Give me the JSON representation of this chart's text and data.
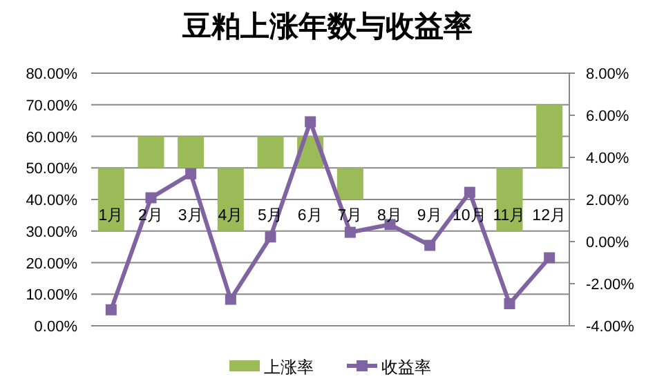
{
  "chart_data": {
    "type": "bar",
    "title": "豆粕上涨年数与收益率",
    "categories": [
      "1月",
      "2月",
      "3月",
      "4月",
      "5月",
      "6月",
      "7月",
      "8月",
      "9月",
      "10月",
      "11月",
      "12月"
    ],
    "series": [
      {
        "name": "上涨率",
        "color": "#9bbb59",
        "base": [
          50,
          50,
          50,
          50,
          50,
          50,
          50,
          null,
          null,
          null,
          50,
          50
        ],
        "values": [
          -20,
          10,
          10,
          -20,
          10,
          10,
          -10,
          null,
          null,
          null,
          -20,
          20
        ]
      },
      {
        "name": "收益率",
        "type": "line",
        "axis": "y2",
        "color": "#8064a2",
        "values": [
          -3.24,
          2.08,
          3.22,
          -2.74,
          0.22,
          5.69,
          0.44,
          0.81,
          -0.18,
          2.34,
          -2.95,
          -0.77
        ]
      }
    ],
    "ylim": [
      0,
      80
    ],
    "yticks": [
      {
        "value": 0,
        "label": "0.00%"
      },
      {
        "value": 10,
        "label": "10.00%"
      },
      {
        "value": 20,
        "label": "20.00%"
      },
      {
        "value": 30,
        "label": "30.00%"
      },
      {
        "value": 40,
        "label": "40.00%"
      },
      {
        "value": 50,
        "label": "50.00%"
      },
      {
        "value": 60,
        "label": "60.00%"
      },
      {
        "value": 70,
        "label": "70.00%"
      },
      {
        "value": 80,
        "label": "80.00%"
      }
    ],
    "y2lim": [
      -4,
      8
    ],
    "y2ticks": [
      {
        "value": -4,
        "label": "-4.00%"
      },
      {
        "value": -2,
        "label": "-2.00%"
      },
      {
        "value": 0,
        "label": "0.00%"
      },
      {
        "value": 2,
        "label": "2.00%"
      },
      {
        "value": 4,
        "label": "4.00%"
      },
      {
        "value": 6,
        "label": "6.00%"
      },
      {
        "value": 8,
        "label": "8.00%"
      }
    ],
    "grid": "y",
    "legend": "bottom",
    "marker": "square",
    "line_style": "solid"
  }
}
